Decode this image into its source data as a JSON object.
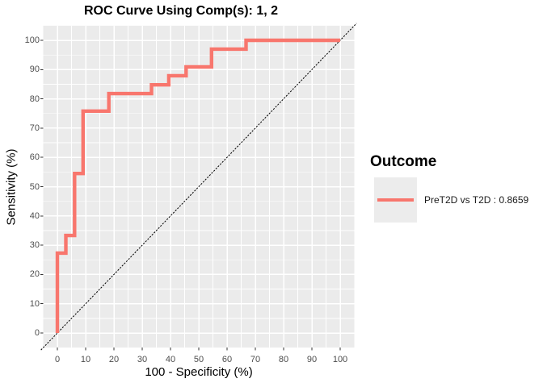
{
  "figure": {
    "background": "#FFFFFF"
  },
  "chart_data": {
    "type": "line",
    "subtype": "roc-step-curve",
    "title": "ROC Curve Using Comp(s): 1, 2",
    "xlabel": "100 - Specificity (%)",
    "ylabel": "Sensitivity (%)",
    "xlim": [
      -5,
      105
    ],
    "ylim": [
      -5,
      105
    ],
    "x_ticks": [
      0,
      10,
      20,
      30,
      40,
      50,
      60,
      70,
      80,
      90,
      100
    ],
    "y_ticks": [
      0,
      10,
      20,
      30,
      40,
      50,
      60,
      70,
      80,
      90,
      100
    ],
    "grid": "major and minor gridlines on",
    "legend_position": "right",
    "panel_bg": "#EBEBEB",
    "grid_color": "#FFFFFF",
    "tick_color": "#333333",
    "series": [
      {
        "name": "PreT2D vs T2D : 0.8659",
        "color": "#F8766D",
        "auc": 0.8659,
        "points": [
          [
            0,
            0
          ],
          [
            0,
            27.3
          ],
          [
            3,
            27.3
          ],
          [
            3,
            33.3
          ],
          [
            6.1,
            33.3
          ],
          [
            6.1,
            54.5
          ],
          [
            9.1,
            54.5
          ],
          [
            9.1,
            75.8
          ],
          [
            18.2,
            75.8
          ],
          [
            18.2,
            81.8
          ],
          [
            33.3,
            81.8
          ],
          [
            33.3,
            84.8
          ],
          [
            39.4,
            84.8
          ],
          [
            39.4,
            87.9
          ],
          [
            45.5,
            87.9
          ],
          [
            45.5,
            90.9
          ],
          [
            54.5,
            90.9
          ],
          [
            54.5,
            97
          ],
          [
            66.7,
            97
          ],
          [
            66.7,
            100
          ],
          [
            100,
            100
          ]
        ]
      }
    ],
    "reference_line": {
      "from": [
        -5.8,
        -5.8
      ],
      "to": [
        105.8,
        105.8
      ],
      "color": "#000000"
    }
  },
  "legend": {
    "title": "Outcome",
    "items": [
      {
        "label": "PreT2D vs T2D : 0.8659",
        "color": "#F8766D"
      }
    ]
  }
}
